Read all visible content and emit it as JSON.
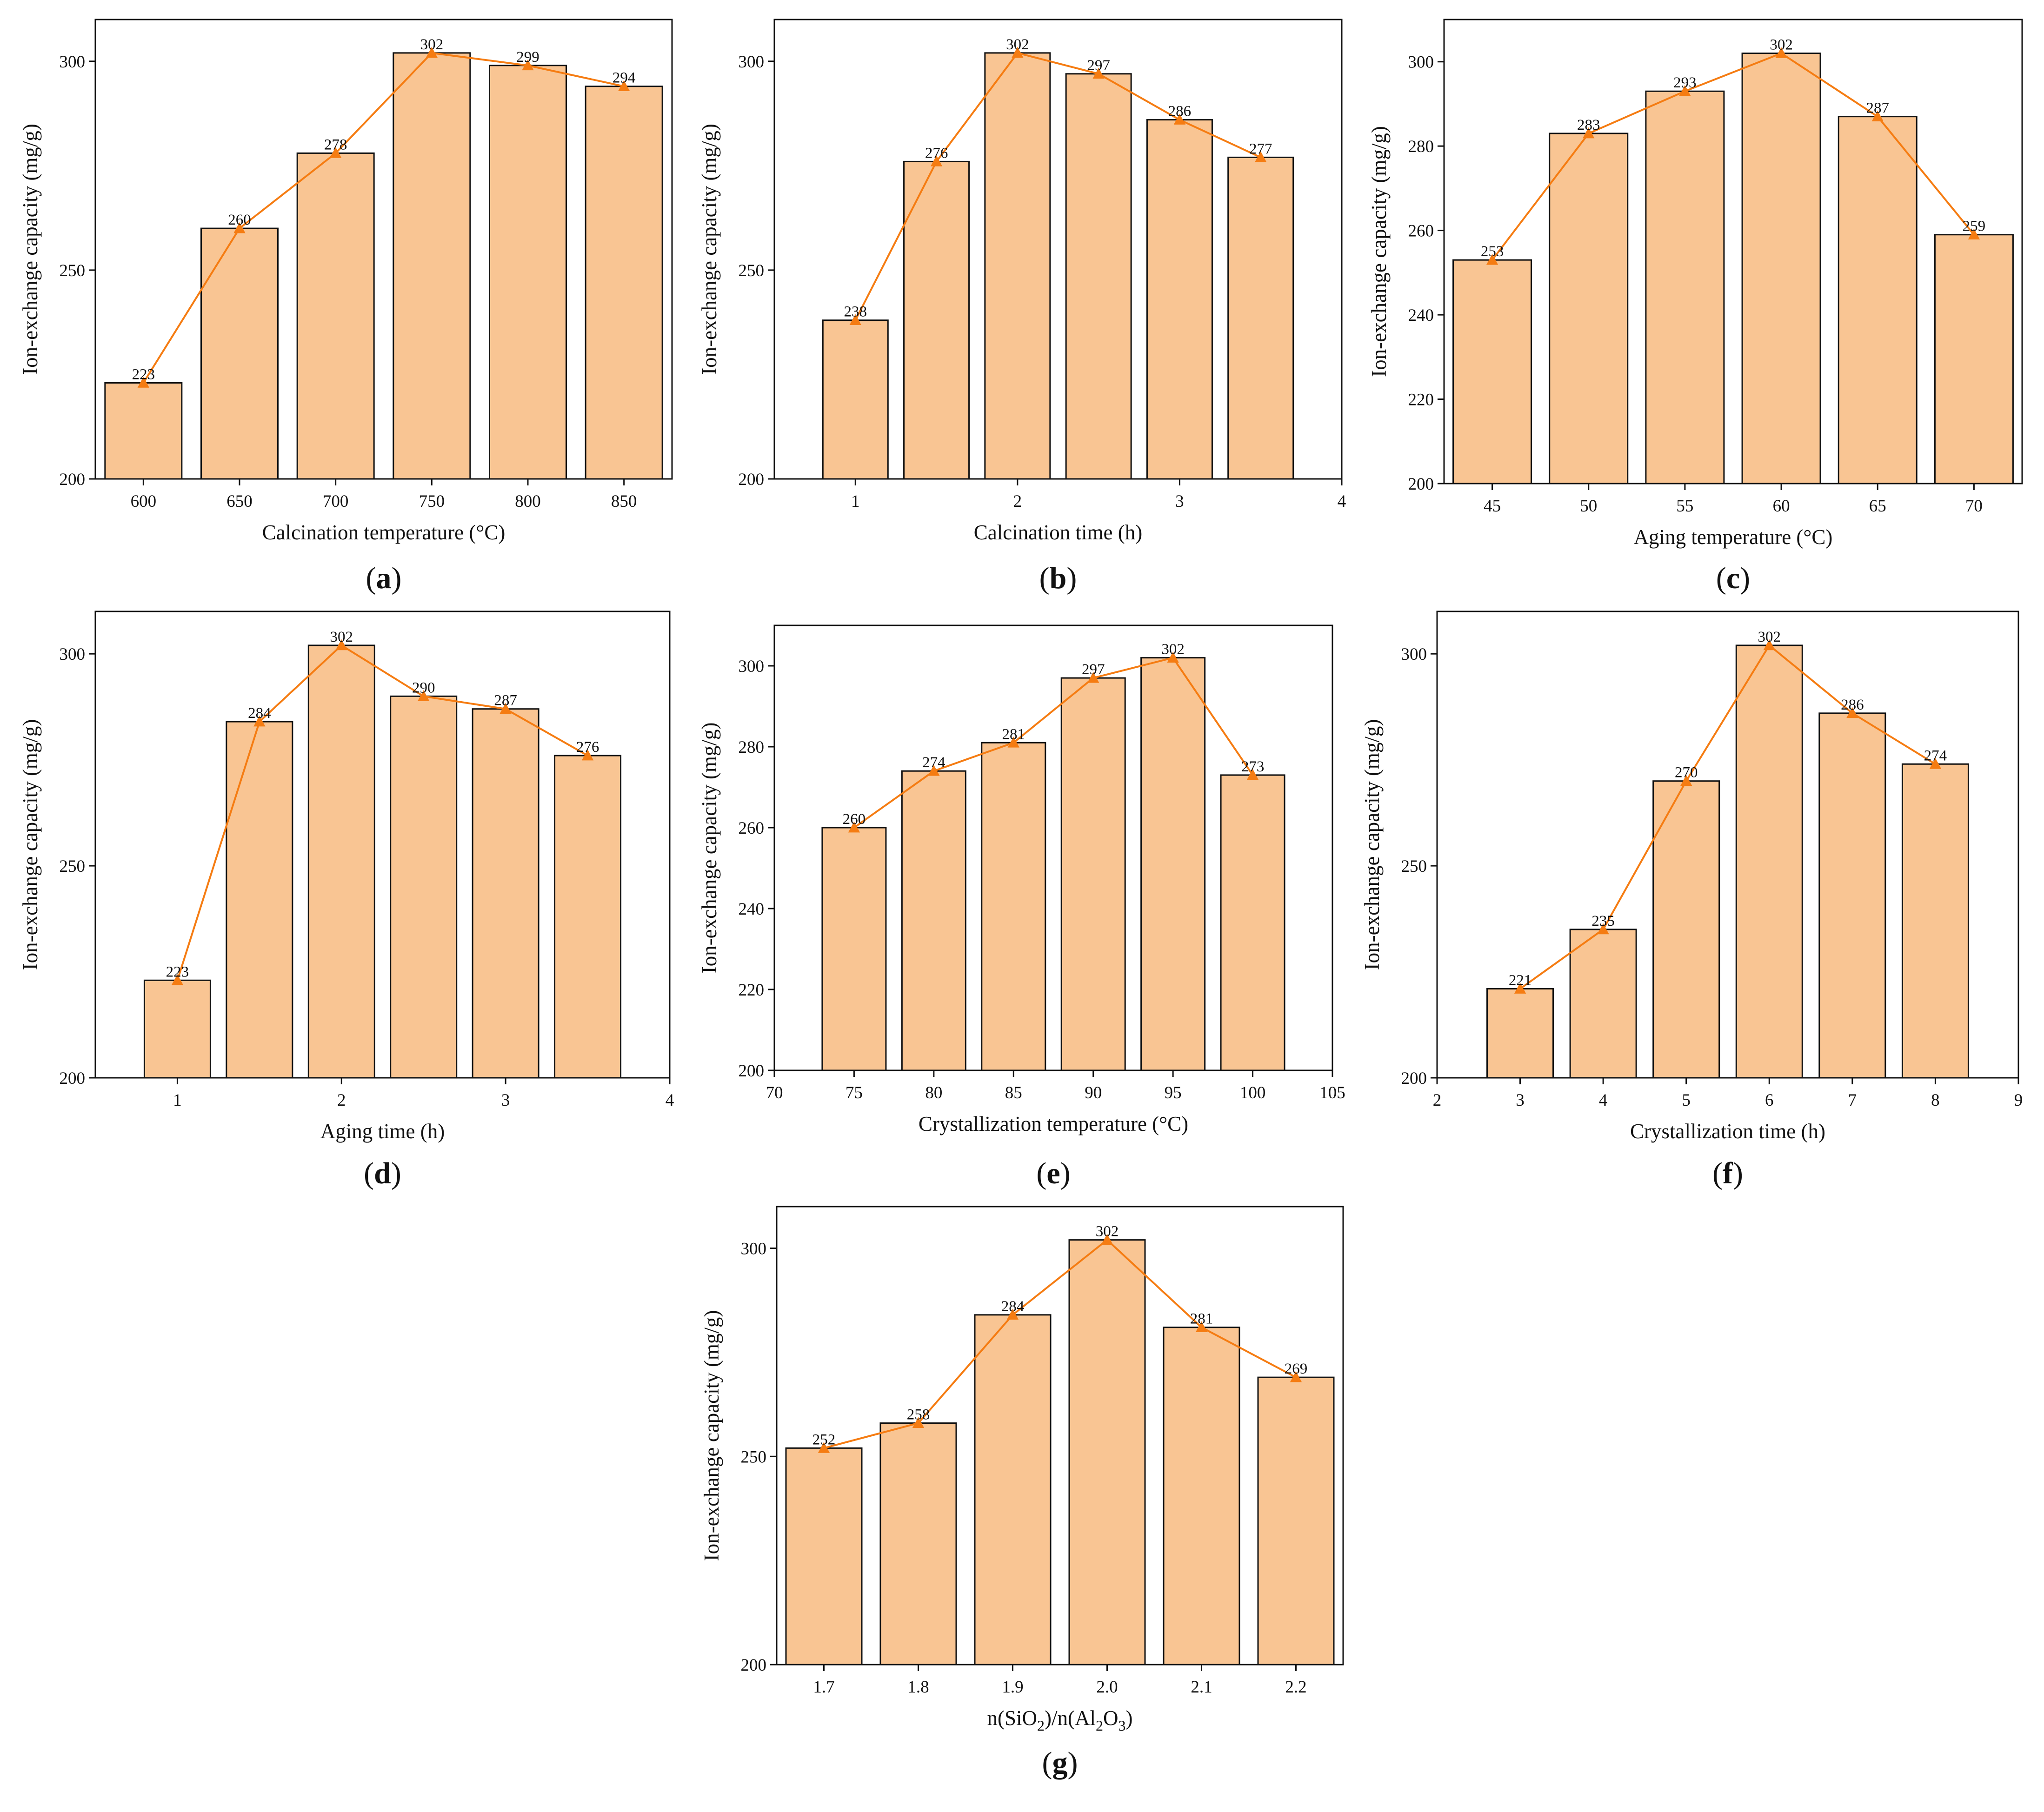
{
  "colors": {
    "bar": "#F9C593",
    "bar_stroke": "#111111",
    "line": "#F57C12",
    "axis": "#111111"
  },
  "chart_data": [
    {
      "id": "a",
      "type": "bar",
      "overlay": "line",
      "panel_label": "a",
      "title": "",
      "xlabel": "Calcination temperature (°C)",
      "ylabel": "Ion-exchange capacity (mg/g)",
      "categories": [
        "600",
        "650",
        "700",
        "750",
        "800",
        "850"
      ],
      "values": [
        223,
        260,
        278,
        302,
        299,
        294
      ],
      "ylim": [
        200,
        310
      ],
      "yticks": [
        200,
        250,
        300
      ]
    },
    {
      "id": "b",
      "type": "bar",
      "overlay": "line",
      "panel_label": "b",
      "title": "",
      "xlabel": "Calcination time (h)",
      "ylabel": "Ion-exchange capacity (mg/g)",
      "x": [
        1,
        1.5,
        2,
        2.5,
        3,
        3.5
      ],
      "values": [
        238,
        276,
        302,
        297,
        286,
        277
      ],
      "xlim": [
        0.5,
        4
      ],
      "xticks": [
        1,
        2,
        3,
        4
      ],
      "ylim": [
        200,
        310
      ],
      "yticks": [
        200,
        250,
        300
      ]
    },
    {
      "id": "c",
      "type": "bar",
      "overlay": "line",
      "panel_label": "c",
      "title": "",
      "xlabel": "Aging temperature (°C)",
      "ylabel": "Ion-exchange capacity (mg/g)",
      "categories": [
        "45",
        "50",
        "55",
        "60",
        "65",
        "70"
      ],
      "values": [
        253,
        283,
        293,
        302,
        287,
        259
      ],
      "ylim": [
        200,
        310
      ],
      "yticks": [
        200,
        220,
        240,
        260,
        280,
        300
      ]
    },
    {
      "id": "d",
      "type": "bar",
      "overlay": "line",
      "panel_label": "d",
      "title": "",
      "xlabel": "Aging time (h)",
      "ylabel": "Ion-exchange capacity (mg/g)",
      "x": [
        1,
        1.5,
        2,
        2.5,
        3,
        3.5
      ],
      "values": [
        223,
        284,
        302,
        290,
        287,
        276
      ],
      "xlim": [
        0.5,
        4
      ],
      "xticks": [
        1,
        2,
        3,
        4
      ],
      "ylim": [
        200,
        310
      ],
      "yticks": [
        200,
        250,
        300
      ]
    },
    {
      "id": "e",
      "type": "bar",
      "overlay": "line",
      "panel_label": "e",
      "title": "",
      "xlabel": "Crystallization temperature (°C)",
      "ylabel": "Ion-exchange capacity (mg/g)",
      "x": [
        75,
        80,
        85,
        90,
        95,
        100
      ],
      "values": [
        260,
        274,
        281,
        297,
        302,
        273
      ],
      "xlim": [
        70,
        105
      ],
      "xticks": [
        70,
        75,
        80,
        85,
        90,
        95,
        100,
        105
      ],
      "ylim": [
        200,
        310
      ],
      "yticks": [
        200,
        220,
        240,
        260,
        280,
        300
      ]
    },
    {
      "id": "f",
      "type": "bar",
      "overlay": "line",
      "panel_label": "f",
      "title": "",
      "xlabel": "Crystallization time (h)",
      "ylabel": "Ion-exchange capacity (mg/g)",
      "x": [
        3,
        4,
        5,
        6,
        7,
        8
      ],
      "values": [
        221,
        235,
        270,
        302,
        286,
        274
      ],
      "xlim": [
        2,
        9
      ],
      "xticks": [
        2,
        3,
        4,
        5,
        6,
        7,
        8,
        9
      ],
      "ylim": [
        200,
        310
      ],
      "yticks": [
        200,
        250,
        300
      ]
    },
    {
      "id": "g",
      "type": "bar",
      "overlay": "line",
      "panel_label": "g",
      "title": "",
      "xlabel": "n(SiO2)/n(Al2O3)",
      "ylabel": "Ion-exchange capacity (mg/g)",
      "xlabel_parts": [
        "n(SiO",
        "2",
        ")/n(Al",
        "2",
        "O",
        "3",
        ")"
      ],
      "categories": [
        "1.7",
        "1.8",
        "1.9",
        "2.0",
        "2.1",
        "2.2"
      ],
      "values": [
        252,
        258,
        284,
        302,
        281,
        269
      ],
      "ylim": [
        200,
        310
      ],
      "yticks": [
        200,
        250,
        300
      ]
    }
  ]
}
